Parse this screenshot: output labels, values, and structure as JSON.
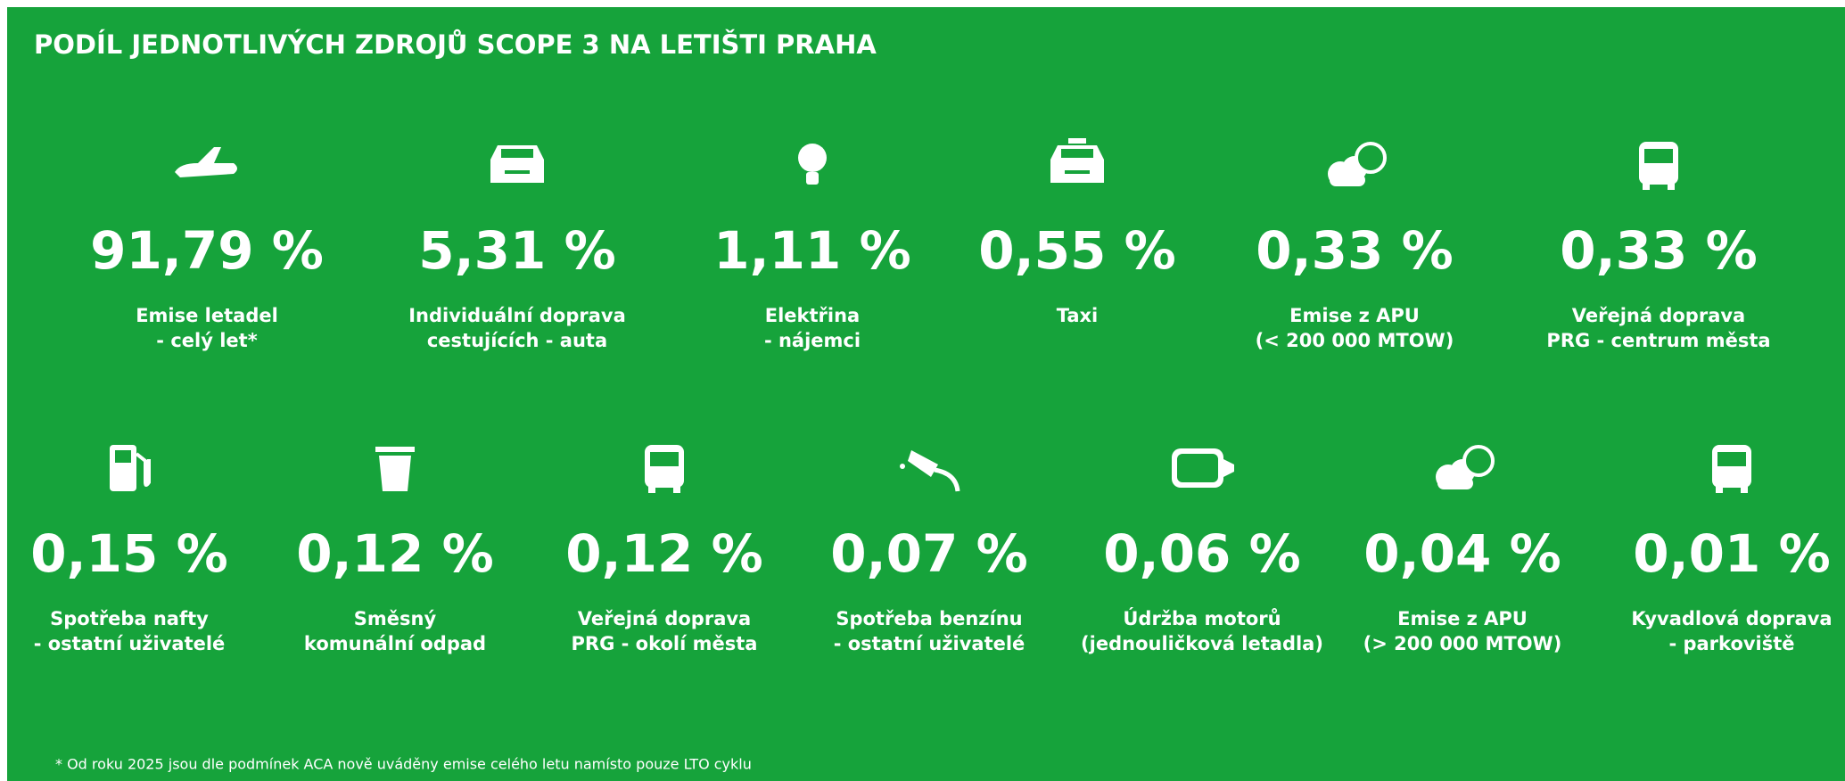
{
  "title": "PODÍL JEDNOTLIVÝCH ZDROJŮ SCOPE 3 NA LETIŠTI PRAHA",
  "rows": [
    [
      {
        "value": "91,79 %",
        "label": [
          "Emise letadel",
          "- celý let*"
        ]
      },
      {
        "value": "5,31 %",
        "label": [
          "Individuální doprava",
          "cestujících - auta"
        ]
      },
      {
        "value": "1,11 %",
        "label": [
          "Elektřina",
          "- nájemci"
        ]
      },
      {
        "value": "0,55 %",
        "label": [
          "Taxi"
        ]
      },
      {
        "value": "0,33 %",
        "label": [
          "Emise z APU",
          "(< 200 000 MTOW)"
        ]
      },
      {
        "value": "0,33 %",
        "label": [
          "Veřejná doprava",
          "PRG - centrum města"
        ]
      }
    ],
    [
      {
        "value": "0,15 %",
        "label": [
          "Spotřeba nafty",
          "- ostatní uživatelé"
        ]
      },
      {
        "value": "0,12 %",
        "label": [
          "Směsný",
          "komunální odpad"
        ]
      },
      {
        "value": "0,12 %",
        "label": [
          "Veřejná doprava",
          "PRG - okolí města"
        ]
      },
      {
        "value": "0,07 %",
        "label": [
          "Spotřeba benzínu",
          "- ostatní uživatelé"
        ]
      },
      {
        "value": "0,06 %",
        "label": [
          "Údržba motorů",
          "(jednouličková letadla)"
        ]
      },
      {
        "value": "0,04 %",
        "label": [
          "Emise z APU",
          "(> 200 000 MTOW)"
        ]
      },
      {
        "value": "0,01 %",
        "label": [
          "Kyvadlová doprava",
          "- parkoviště"
        ]
      }
    ]
  ],
  "footnote": "* Od roku 2025 jsou dle podmínek ACA nově uváděny emise celého letu namísto pouze LTO cyklu"
}
